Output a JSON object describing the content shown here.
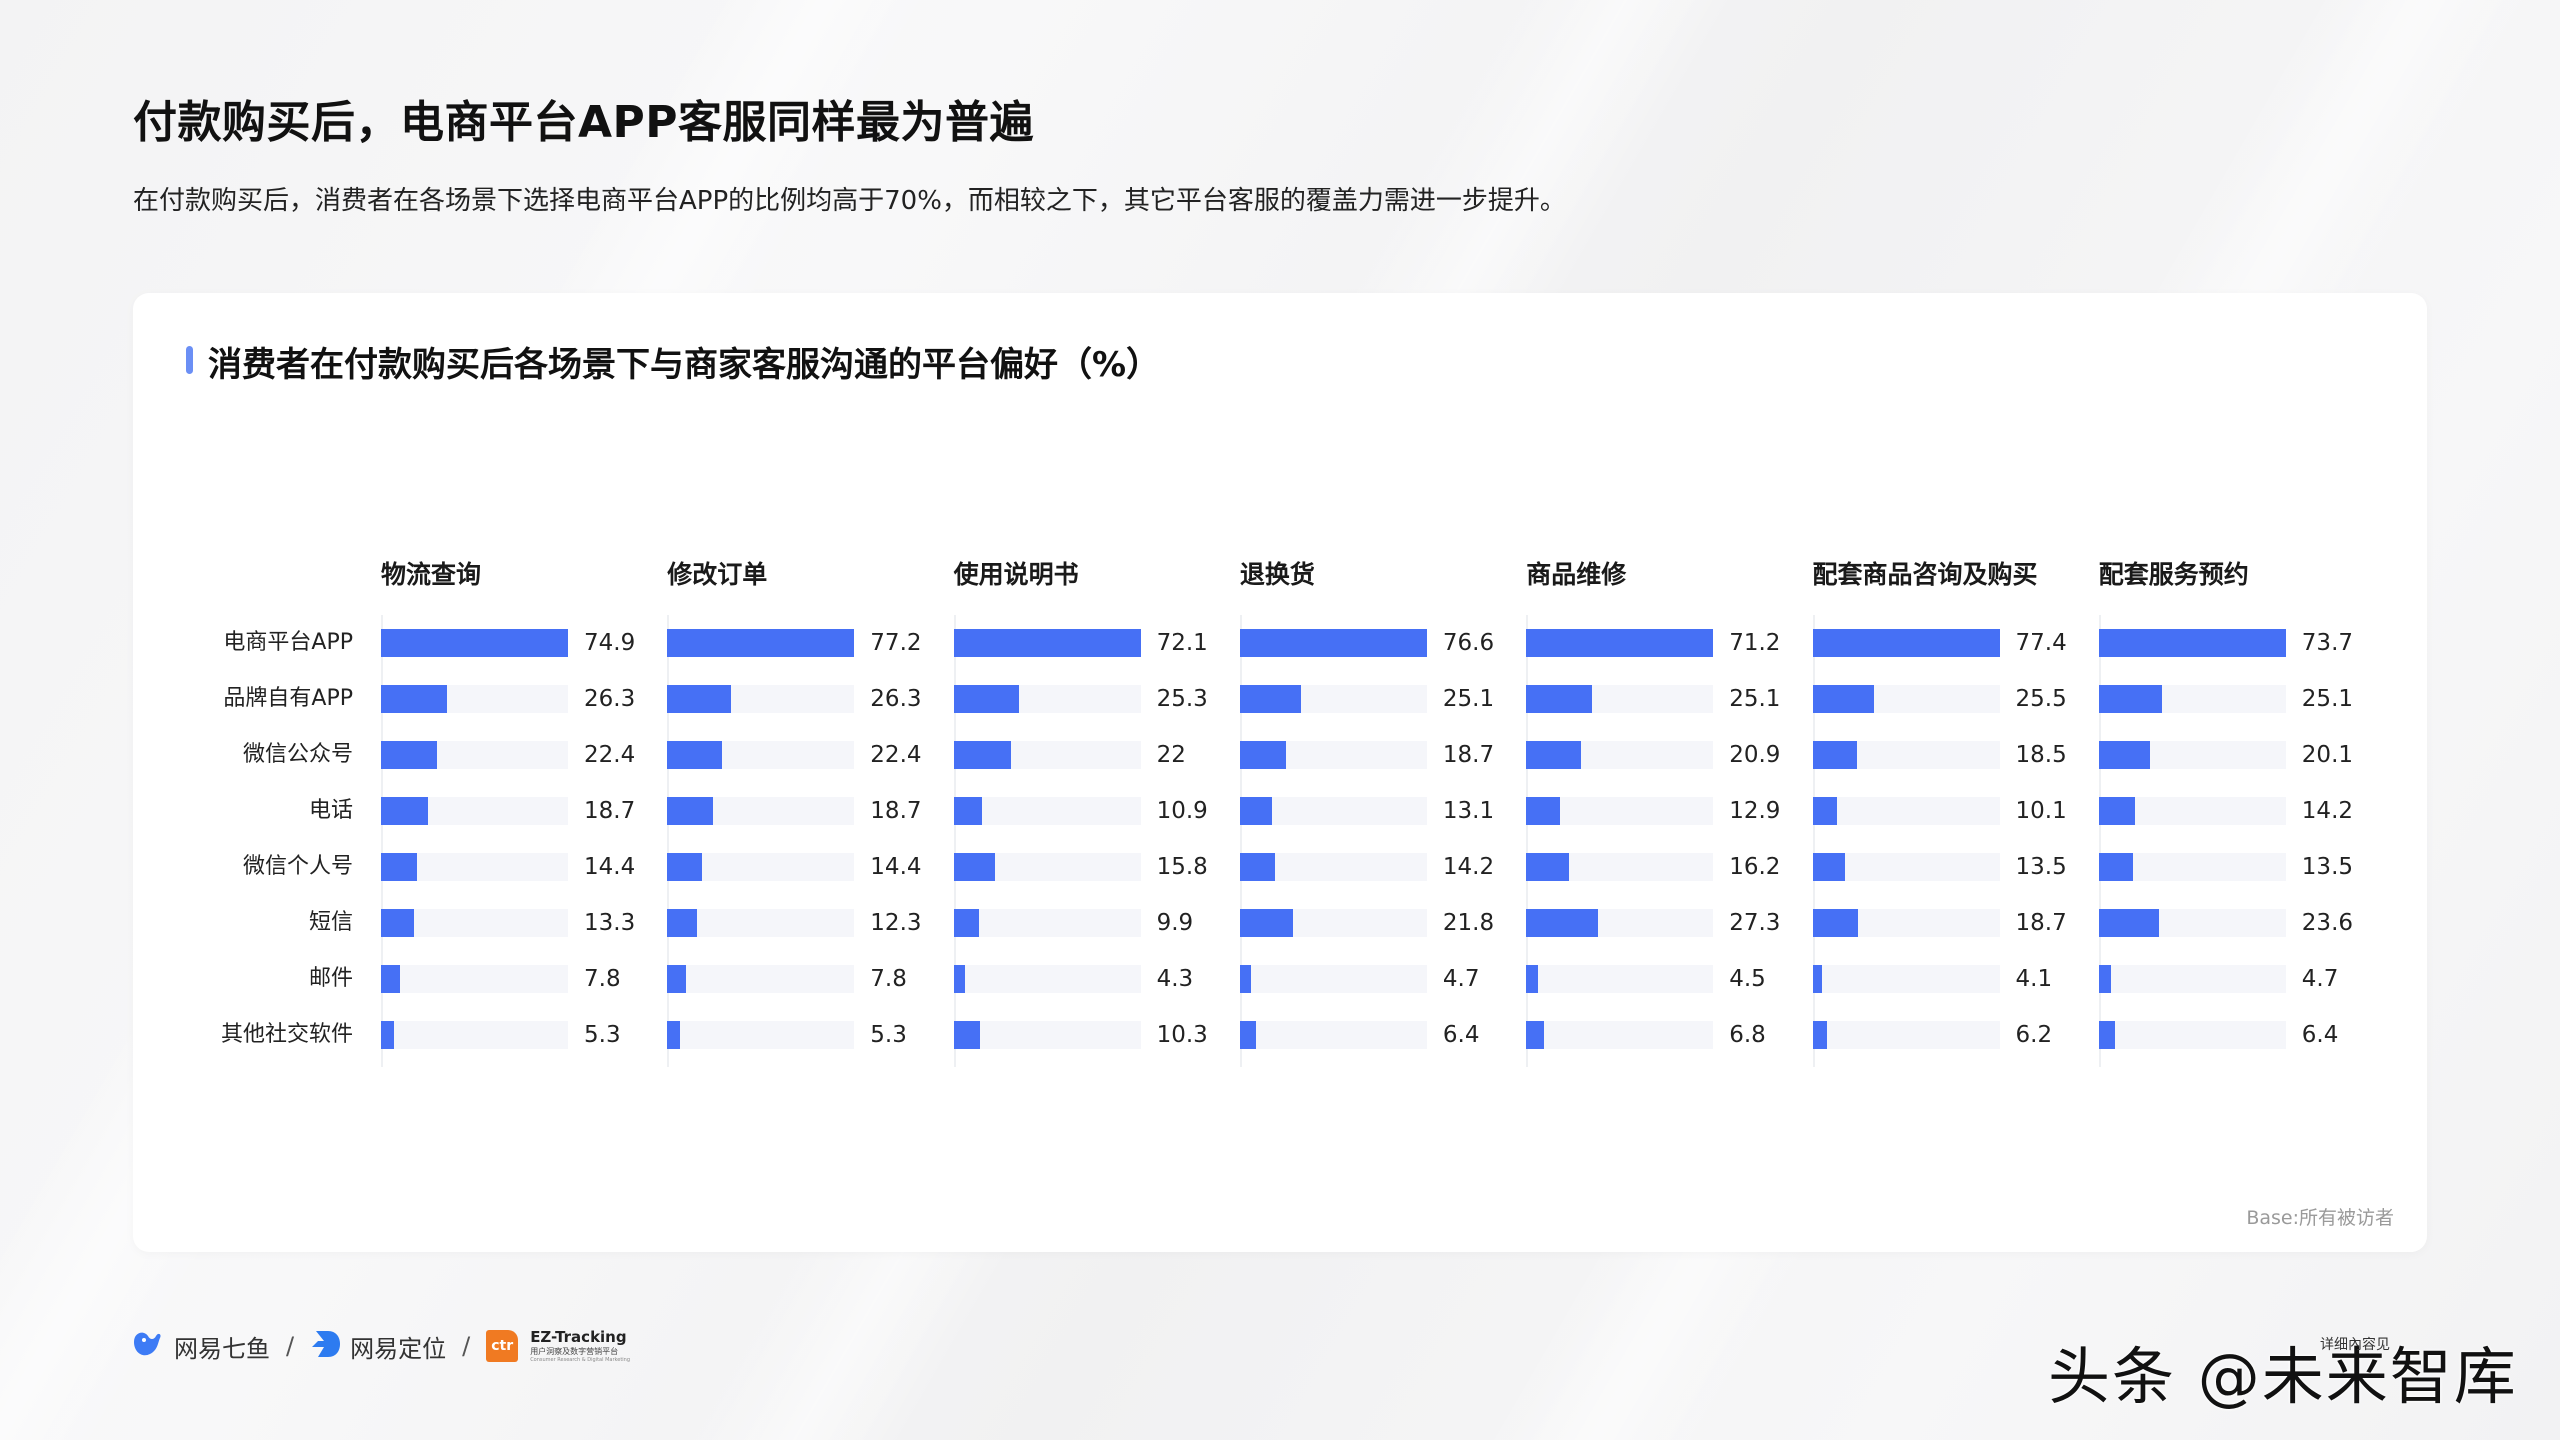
{
  "page": {
    "title": "付款购买后，电商平台APP客服同样最为普遍",
    "subtitle": "在付款购买后，消费者在各场景下选择电商平台APP的比例均高于70%，而相较之下，其它平台客服的覆盖力需进一步提升。"
  },
  "card": {
    "title": "消费者在付款购买后各场景下与商家客服沟通的平台偏好（%）",
    "base_note": "Base:所有被访者",
    "accent_color": "#6b8ff5",
    "bar_color": "#4670f5",
    "track_color": "#f5f6fa"
  },
  "footer": {
    "logos": [
      {
        "name": "网易七鱼",
        "icon": "qiyu-fish-icon"
      },
      {
        "name": "网易定位",
        "icon": "dingwei-arrow-icon"
      },
      {
        "name": "EZ-Tracking",
        "icon": "ctr-logo-icon",
        "sub": "用户洞察及数字营销平台",
        "sub2": "Consumer Research & Digital Marketing",
        "badge": "ctr"
      }
    ],
    "separator": "/",
    "watermark": "头条 @未来智库",
    "watermark_small": "详细內容见"
  },
  "chart_data": {
    "type": "bar",
    "orientation": "horizontal",
    "layout": "small-multiples",
    "title": "消费者在付款购买后各场景下与商家客服沟通的平台偏好（%）",
    "xlabel": "",
    "ylabel": "",
    "categories": [
      "电商平台APP",
      "品牌自有APP",
      "微信公众号",
      "电话",
      "微信个人号",
      "短信",
      "邮件",
      "其他社交软件"
    ],
    "series": [
      {
        "name": "物流查询",
        "values": [
          74.9,
          26.3,
          22.4,
          18.7,
          14.4,
          13.3,
          7.8,
          5.3
        ]
      },
      {
        "name": "修改订单",
        "values": [
          77.2,
          26.3,
          22.4,
          18.7,
          14.4,
          12.3,
          7.8,
          5.3
        ]
      },
      {
        "name": "使用说明书",
        "values": [
          72.1,
          25.3,
          22,
          10.9,
          15.8,
          9.9,
          4.3,
          10.3
        ]
      },
      {
        "name": "退换货",
        "values": [
          76.6,
          25.1,
          18.7,
          13.1,
          14.2,
          21.8,
          4.7,
          6.4
        ]
      },
      {
        "name": "商品维修",
        "values": [
          71.2,
          25.1,
          20.9,
          12.9,
          16.2,
          27.3,
          4.5,
          6.8
        ]
      },
      {
        "name": "配套商品咨询及购买",
        "values": [
          77.4,
          25.5,
          18.5,
          10.1,
          13.5,
          18.7,
          4.1,
          6.2
        ]
      },
      {
        "name": "配套服务预约",
        "values": [
          73.7,
          25.1,
          20.1,
          14.2,
          13.5,
          23.6,
          4.7,
          6.4
        ]
      }
    ],
    "grid": false,
    "legend": "none (panel headers)",
    "note": "Base:所有被访者"
  }
}
